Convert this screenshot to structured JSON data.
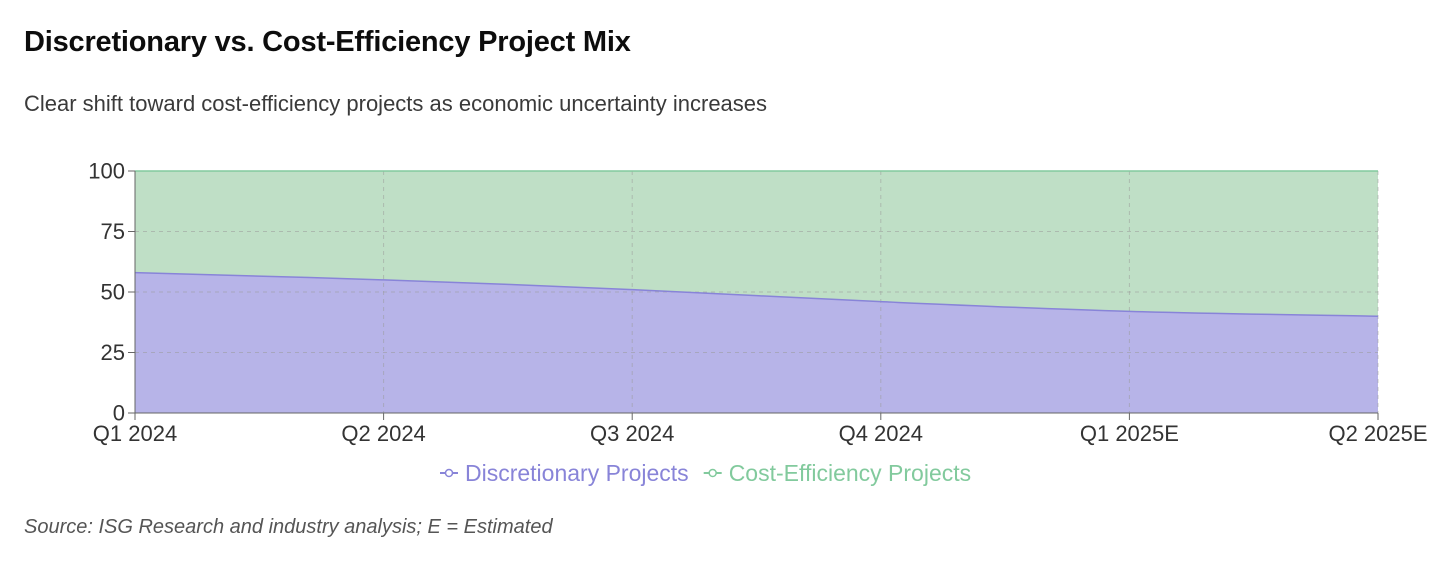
{
  "header": {
    "title": "Discretionary vs. Cost-Efficiency Project Mix",
    "subtitle": "Clear shift toward cost-efficiency projects as economic uncertainty increases"
  },
  "footer": {
    "source": "Source: ISG Research and industry analysis; E = Estimated"
  },
  "chart_data": {
    "type": "area",
    "stacked": true,
    "title": "Discretionary vs. Cost-Efficiency Project Mix",
    "xlabel": "",
    "ylabel": "",
    "ylim": [
      0,
      100
    ],
    "yticks": [
      "0",
      "25",
      "50",
      "75",
      "100"
    ],
    "ytick_values": [
      0,
      25,
      50,
      75,
      100
    ],
    "categories": [
      "Q1 2024",
      "Q2 2024",
      "Q3 2024",
      "Q4 2024",
      "Q1 2025E",
      "Q2 2025E"
    ],
    "grid": true,
    "legend_position": "bottom-center",
    "series": [
      {
        "name": "Discretionary Projects",
        "values": [
          58,
          55,
          51,
          46,
          42,
          40
        ],
        "fill_color": "#b7b4e8",
        "line_color": "#8884d8"
      },
      {
        "name": "Cost-Efficiency Projects",
        "values": [
          42,
          45,
          49,
          54,
          58,
          60
        ],
        "fill_color": "#bfdfc6",
        "line_color": "#82ca9d"
      }
    ]
  }
}
